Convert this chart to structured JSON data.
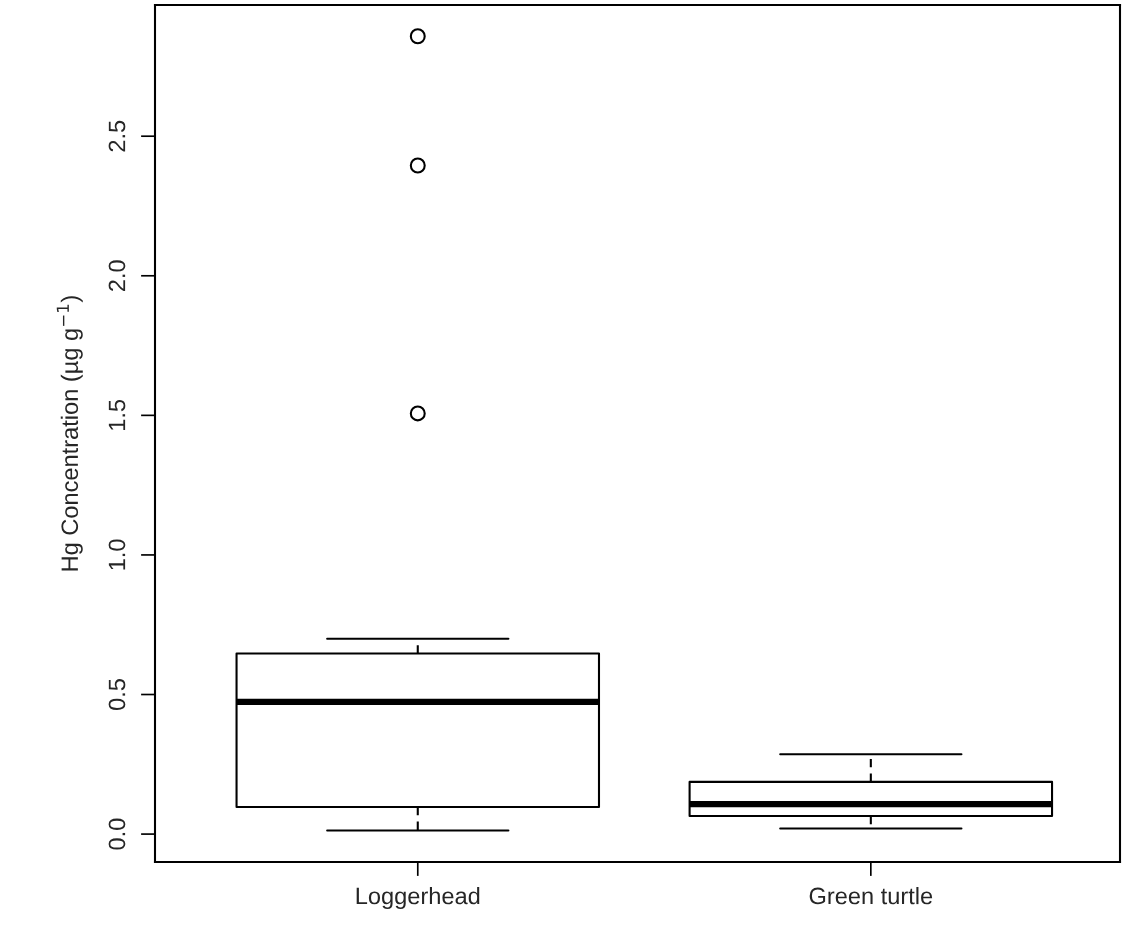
{
  "chart_data": {
    "type": "box",
    "ylabel": "Hg Concentration (µg g$^{−1}$)",
    "categories": [
      "Loggerhead",
      "Green turtle"
    ],
    "boxes": [
      {
        "low": 0.013,
        "q1": 0.097,
        "median": 0.474,
        "q3": 0.647,
        "high": 0.7,
        "outliers": [
          1.507,
          2.395,
          2.858
        ]
      },
      {
        "low": 0.02,
        "q1": 0.065,
        "median": 0.107,
        "q3": 0.187,
        "high": 0.286
      }
    ],
    "ylim": [
      -0.1,
      2.97
    ],
    "yticks": [
      {
        "value": 0,
        "label": "0.0"
      },
      0.5,
      {
        "value": 1,
        "label": "1.0"
      },
      1.5,
      {
        "value": 2,
        "label": "2.0"
      },
      2.5
    ],
    "grid": false,
    "marker": "circle"
  }
}
